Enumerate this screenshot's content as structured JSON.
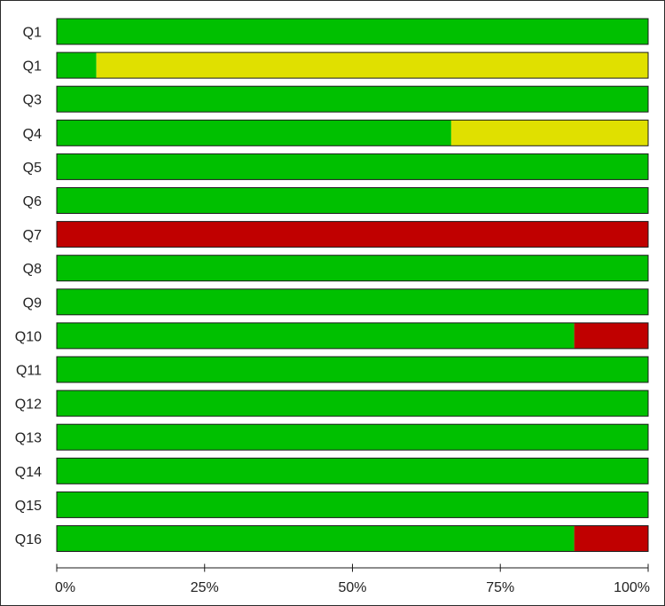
{
  "chart_data": {
    "type": "bar",
    "orientation": "horizontal",
    "stacked": true,
    "categories": [
      "Q1",
      "Q1",
      "Q3",
      "Q4",
      "Q5",
      "Q6",
      "Q7",
      "Q8",
      "Q9",
      "Q10",
      "Q11",
      "Q12",
      "Q13",
      "Q14",
      "Q15",
      "Q16"
    ],
    "series": [
      {
        "color": "#00c000",
        "values": [
          100,
          6.7,
          100,
          66.7,
          100,
          100,
          0,
          100,
          100,
          87.5,
          100,
          100,
          100,
          100,
          100,
          87.5
        ]
      },
      {
        "color": "#e0e000",
        "values": [
          0,
          93.3,
          0,
          33.3,
          0,
          0,
          0,
          0,
          0,
          0,
          0,
          0,
          0,
          0,
          0,
          0
        ]
      },
      {
        "color": "#c00000",
        "values": [
          0,
          0,
          0,
          0,
          0,
          0,
          100,
          0,
          0,
          12.5,
          0,
          0,
          0,
          0,
          0,
          12.5
        ]
      }
    ],
    "xlim": [
      0,
      100
    ],
    "xticks": [
      0,
      25,
      50,
      75,
      100
    ],
    "xtick_labels": [
      "0%",
      "25%",
      "50%",
      "75%",
      "100%"
    ],
    "grid": false,
    "legend": "none",
    "title": "",
    "xlabel": "",
    "ylabel": ""
  }
}
